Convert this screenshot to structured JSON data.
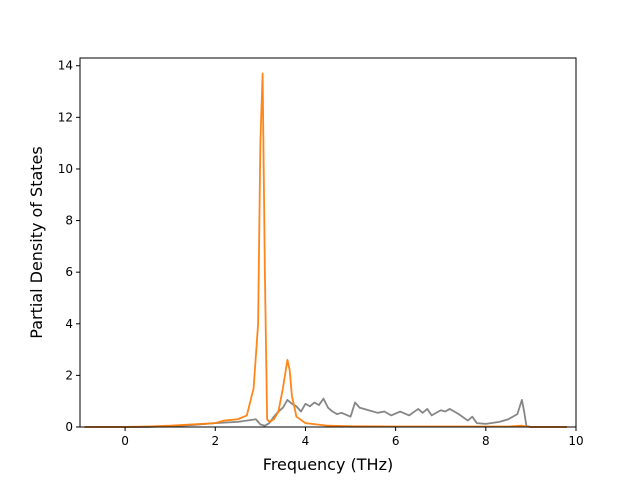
{
  "chart_data": {
    "type": "line",
    "title": "",
    "xlabel": "Frequency (THz)",
    "ylabel": "Partial Density of States",
    "xlim": [
      -1.0,
      10.0
    ],
    "ylim": [
      0,
      14.3
    ],
    "xticks": [
      0,
      2,
      4,
      6,
      8,
      10
    ],
    "xtick_labels": [
      "0",
      "2",
      "4",
      "6",
      "8",
      "10"
    ],
    "yticks": [
      0,
      2,
      4,
      6,
      8,
      10,
      12,
      14
    ],
    "ytick_labels": [
      "0",
      "2",
      "4",
      "6",
      "8",
      "10",
      "12",
      "14"
    ],
    "grid": false,
    "legend": "none",
    "series": [
      {
        "color": "#7f7f7f",
        "x": [
          -0.9,
          0.0,
          0.5,
          1.0,
          1.5,
          2.0,
          2.5,
          2.9,
          3.0,
          3.1,
          3.2,
          3.3,
          3.4,
          3.5,
          3.6,
          3.7,
          3.8,
          3.9,
          4.0,
          4.1,
          4.2,
          4.3,
          4.4,
          4.5,
          4.6,
          4.7,
          4.8,
          5.0,
          5.1,
          5.2,
          5.4,
          5.6,
          5.75,
          5.9,
          6.1,
          6.3,
          6.5,
          6.6,
          6.7,
          6.8,
          7.0,
          7.1,
          7.2,
          7.4,
          7.6,
          7.7,
          7.8,
          8.0,
          8.3,
          8.5,
          8.7,
          8.8,
          8.85,
          8.9,
          9.0,
          9.8
        ],
        "y": [
          0,
          0,
          0,
          0.03,
          0.08,
          0.15,
          0.2,
          0.3,
          0.1,
          0.05,
          0.15,
          0.4,
          0.6,
          0.75,
          1.05,
          0.9,
          0.8,
          0.6,
          0.9,
          0.8,
          0.95,
          0.85,
          1.1,
          0.75,
          0.6,
          0.5,
          0.55,
          0.4,
          0.95,
          0.75,
          0.65,
          0.55,
          0.6,
          0.45,
          0.6,
          0.45,
          0.7,
          0.55,
          0.7,
          0.45,
          0.65,
          0.6,
          0.7,
          0.5,
          0.25,
          0.4,
          0.15,
          0.12,
          0.2,
          0.3,
          0.5,
          1.05,
          0.6,
          0.05,
          0,
          0
        ]
      },
      {
        "color": "#ff7f0e",
        "x": [
          -0.9,
          0.0,
          0.5,
          1.0,
          1.5,
          2.0,
          2.2,
          2.5,
          2.7,
          2.85,
          2.95,
          3.0,
          3.05,
          3.1,
          3.15,
          3.2,
          3.3,
          3.4,
          3.5,
          3.6,
          3.65,
          3.7,
          3.8,
          4.0,
          4.5,
          5.0,
          6.0,
          7.0,
          8.0,
          8.5,
          8.8,
          8.9,
          9.0,
          9.8
        ],
        "y": [
          0,
          0,
          0.02,
          0.05,
          0.1,
          0.15,
          0.25,
          0.3,
          0.45,
          1.5,
          4.0,
          11.0,
          13.7,
          6.0,
          0.3,
          0.2,
          0.3,
          0.6,
          1.5,
          2.6,
          2.2,
          1.2,
          0.4,
          0.15,
          0.05,
          0.03,
          0.02,
          0.02,
          0.02,
          0.02,
          0.05,
          0.02,
          0,
          0
        ]
      }
    ]
  }
}
